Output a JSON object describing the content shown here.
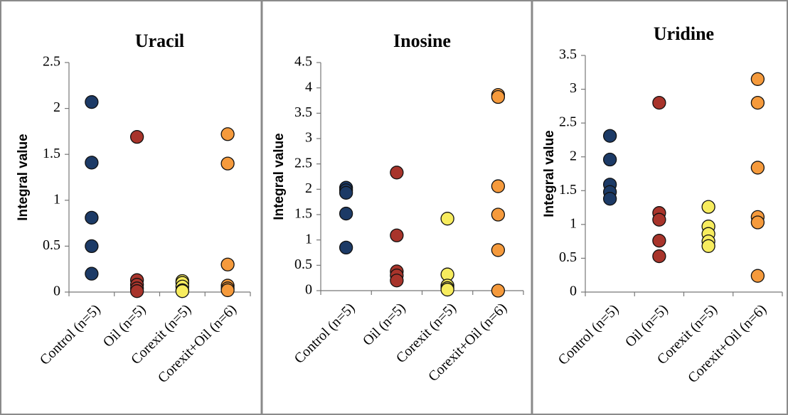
{
  "chart_data": [
    {
      "type": "scatter",
      "title": "Uracil",
      "y_label": "Integral value",
      "categories": [
        "Control (n=5)",
        "Oil (n=5)",
        "Corexit (n=5)",
        "Corexit+Oil (n=6)"
      ],
      "colors": [
        "#1c3a66",
        "#a8342b",
        "#f7ec5e",
        "#f59a3c"
      ],
      "values": [
        [
          2.07,
          1.41,
          0.81,
          0.5,
          0.2
        ],
        [
          1.69,
          0.13,
          0.08,
          0.04,
          0.01
        ],
        [
          0.12,
          0.1,
          0.06,
          0.02,
          0.01
        ],
        [
          1.72,
          1.4,
          0.3,
          0.07,
          0.04,
          0.02
        ]
      ],
      "ylim": [
        0,
        2.5
      ],
      "yticks": [
        0,
        0.5,
        1,
        1.5,
        2,
        2.5
      ]
    },
    {
      "type": "scatter",
      "title": "Inosine",
      "y_label": "Integral value",
      "categories": [
        "Control (n=5)",
        "Oil (n=5)",
        "Corexit (n=5)",
        "Corexit+Oil (n=6)"
      ],
      "colors": [
        "#1c3a66",
        "#a8342b",
        "#f7ec5e",
        "#f59a3c"
      ],
      "values": [
        [
          2.03,
          1.98,
          1.93,
          1.52,
          0.85
        ],
        [
          2.33,
          1.09,
          0.38,
          0.3,
          0.2
        ],
        [
          1.42,
          0.32,
          0.1,
          0.05,
          0.02
        ],
        [
          3.86,
          3.82,
          2.06,
          1.5,
          0.8,
          0
        ]
      ],
      "ylim": [
        0,
        4.5
      ],
      "yticks": [
        0,
        0.5,
        1,
        1.5,
        2,
        2.5,
        3,
        3.5,
        4,
        4.5
      ]
    },
    {
      "type": "scatter",
      "title": "Uridine",
      "y_label": "Integral value",
      "categories": [
        "Control (n=5)",
        "Oil (n=5)",
        "Corexit (n=5)",
        "Corexit+Oil (n=6)"
      ],
      "colors": [
        "#1c3a66",
        "#a8342b",
        "#f7ec5e",
        "#f59a3c"
      ],
      "values": [
        [
          2.31,
          1.96,
          1.59,
          1.48,
          1.38
        ],
        [
          2.8,
          1.17,
          1.07,
          0.76,
          0.53
        ],
        [
          1.26,
          0.97,
          0.86,
          0.75,
          0.68
        ],
        [
          3.15,
          2.8,
          1.84,
          1.11,
          1.03,
          0.24
        ]
      ],
      "ylim": [
        0,
        3.5
      ],
      "yticks": [
        0,
        0.5,
        1,
        1.5,
        2,
        2.5,
        3,
        3.5
      ]
    }
  ]
}
